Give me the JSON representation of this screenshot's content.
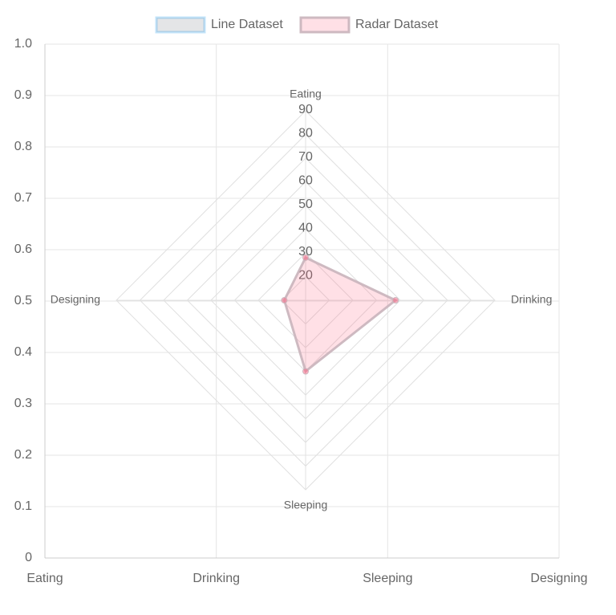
{
  "chart_data": [
    {
      "type": "line",
      "categories": [
        "Eating",
        "Drinking",
        "Sleeping",
        "Designing"
      ],
      "ylim": [
        0,
        1
      ],
      "yticks": [
        0,
        0.1,
        0.2,
        0.3,
        0.4,
        0.5,
        0.6,
        0.7,
        0.8,
        0.9,
        {
          "value": 1,
          "label": "1.0"
        }
      ],
      "grid": true,
      "series": [
        {
          "name": "Line Dataset",
          "color": "rgba(201,203,207,0.5)",
          "border_color": "rgba(54,162,235,0.3)",
          "values": [
            null,
            null,
            null,
            null
          ]
        }
      ]
    },
    {
      "type": "radar",
      "labels": [
        "Eating",
        "Drinking",
        "Sleeping",
        "Designing"
      ],
      "rlim": [
        10,
        90
      ],
      "rticks": [
        20,
        30,
        40,
        50,
        60,
        70,
        80,
        90
      ],
      "series": [
        {
          "name": "Radar Dataset",
          "color": "rgba(255,99,132,0.2)",
          "border_color": "rgba(201,180,187,0.9)",
          "point_color": "rgba(255,99,132,0.5)",
          "values": [
            28,
            48,
            40,
            19
          ]
        }
      ]
    }
  ]
}
